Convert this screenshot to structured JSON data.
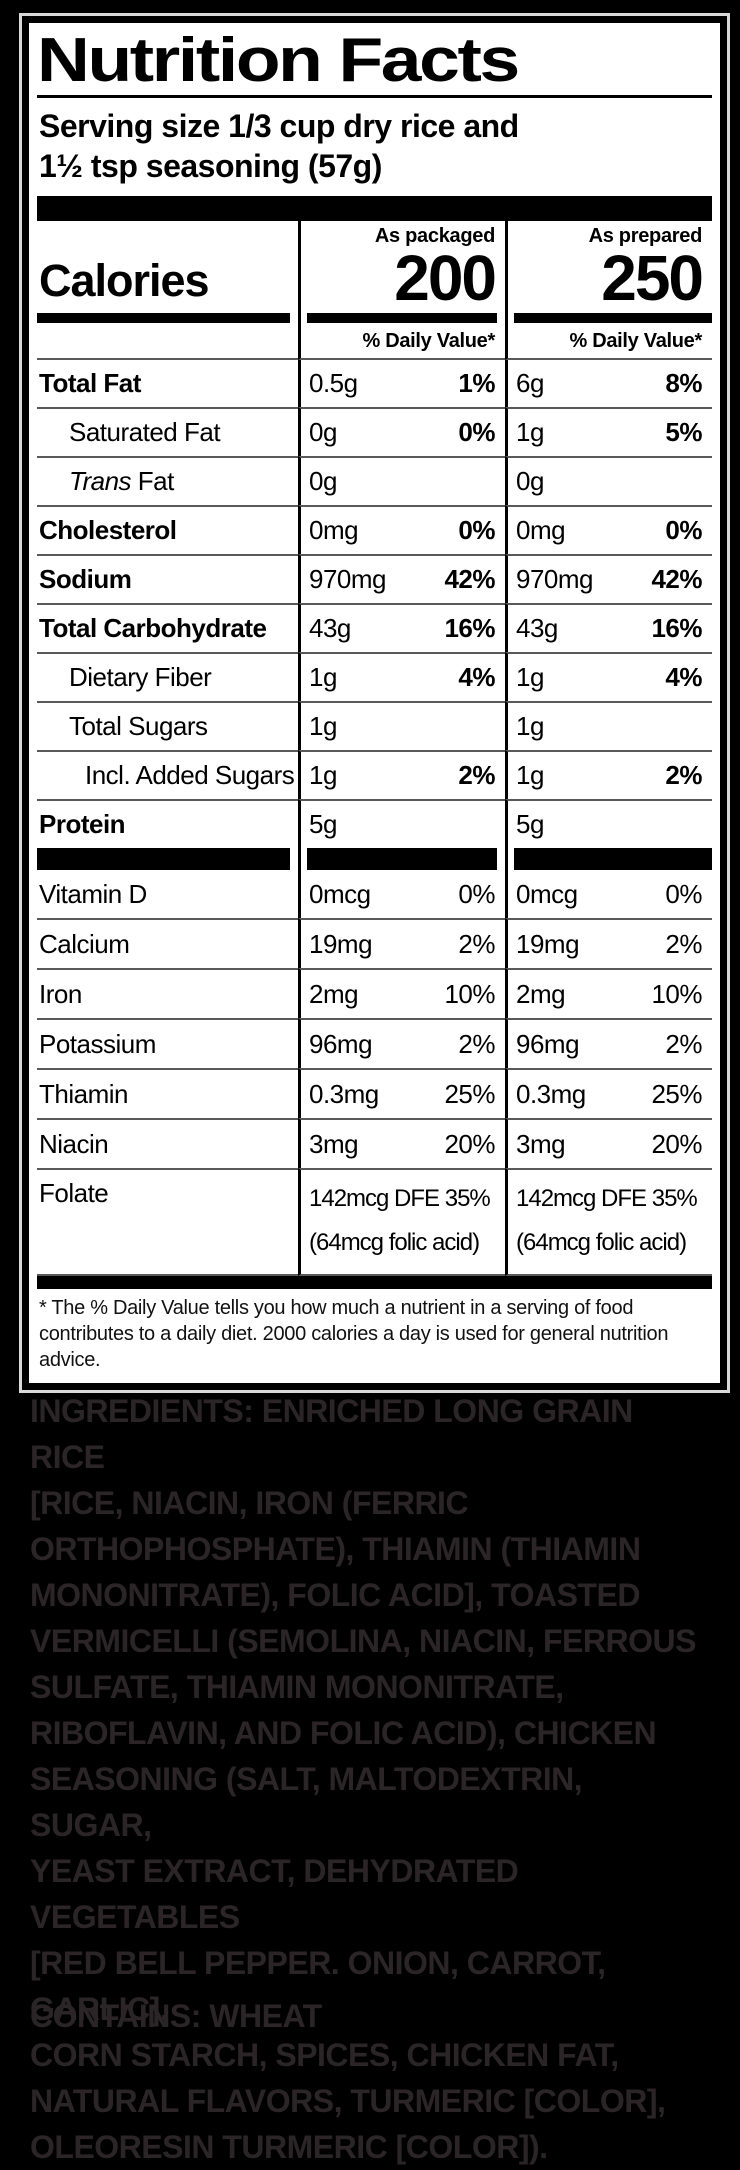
{
  "colors": {
    "background": "#000000",
    "panel_bg": "#ffffff",
    "panel_text": "#000000",
    "hairline": "#58595b",
    "ingredients_text": "#2b2527"
  },
  "panel": {
    "title": "Nutrition Facts",
    "serving_size": "Serving size 1/3 cup dry rice and\n1½ tsp seasoning (57g)",
    "columns": {
      "col1": "As packaged",
      "col2": "As prepared"
    },
    "calories": {
      "label": "Calories",
      "col1": "200",
      "col2": "250"
    },
    "daily_value_header": "% Daily Value*",
    "nutrients": [
      {
        "label": "Total Fat",
        "v1": "0.5g",
        "p1": "1%",
        "v2": "6g",
        "p2": "8%"
      },
      {
        "label": "Saturated Fat",
        "v1": "0g",
        "p1": "0%",
        "v2": "1g",
        "p2": "5%"
      },
      {
        "label_italic": "Trans",
        "label": " Fat",
        "v1": "0g",
        "p1": "",
        "v2": "0g",
        "p2": ""
      },
      {
        "label": "Cholesterol",
        "v1": "0mg",
        "p1": "0%",
        "v2": "0mg",
        "p2": "0%"
      },
      {
        "label": "Sodium",
        "v1": "970mg",
        "p1": "42%",
        "v2": "970mg",
        "p2": "42%"
      },
      {
        "label": "Total Carbohydrate",
        "v1": "43g",
        "p1": "16%",
        "v2": "43g",
        "p2": "16%"
      },
      {
        "label": "Dietary Fiber",
        "v1": "1g",
        "p1": "4%",
        "v2": "1g",
        "p2": "4%"
      },
      {
        "label": "Total Sugars",
        "v1": "1g",
        "p1": "",
        "v2": "1g",
        "p2": ""
      },
      {
        "label": "Incl. Added Sugars",
        "v1": "1g",
        "p1": "2%",
        "v2": "1g",
        "p2": "2%"
      },
      {
        "label": "Protein",
        "v1": "5g",
        "p1": "",
        "v2": "5g",
        "p2": ""
      }
    ],
    "vitamins": [
      {
        "label": "Vitamin D",
        "v1": "0mcg",
        "p1": "0%",
        "v2": "0mcg",
        "p2": "0%"
      },
      {
        "label": "Calcium",
        "v1": "19mg",
        "p1": "2%",
        "v2": "19mg",
        "p2": "2%"
      },
      {
        "label": "Iron",
        "v1": "2mg",
        "p1": "10%",
        "v2": "2mg",
        "p2": "10%"
      },
      {
        "label": "Potassium",
        "v1": "96mg",
        "p1": "2%",
        "v2": "96mg",
        "p2": "2%"
      },
      {
        "label": "Thiamin",
        "v1": "0.3mg",
        "p1": "25%",
        "v2": "0.3mg",
        "p2": "25%"
      },
      {
        "label": "Niacin",
        "v1": "3mg",
        "p1": "20%",
        "v2": "3mg",
        "p2": "20%"
      },
      {
        "label": "Folate",
        "v1": "142mcg DFE 35%\n(64mcg folic acid)",
        "v2": "142mcg DFE 35%\n(64mcg folic acid)"
      }
    ],
    "footnote": "* The % Daily Value tells you how much a nutrient in a serving of food contributes to a daily diet. 2000 calories a day is used for general nutrition advice."
  },
  "ingredients": {
    "label": "INGREDIENTS:",
    "text": "ENRICHED LONG GRAIN RICE\n[RICE, NIACIN, IRON (FERRIC\nORTHOPHOSPHATE), THIAMIN (THIAMIN\nMONONITRATE), FOLIC ACID], TOASTED\nVERMICELLI (SEMOLINA, NIACIN, FERROUS\nSULFATE, THIAMIN MONONITRATE,\nRIBOFLAVIN, AND FOLIC ACID), CHICKEN\nSEASONING (SALT, MALTODEXTRIN, SUGAR,\nYEAST EXTRACT, DEHYDRATED VEGETABLES\n[RED BELL PEPPER. ONION, CARROT, GARLIC],\nCORN STARCH, SPICES, CHICKEN FAT,\nNATURAL FLAVORS, TURMERIC [COLOR],\nOLEORESIN TURMERIC [COLOR])."
  },
  "contains": {
    "label": "CONTAINS:",
    "text": "WHEAT"
  }
}
